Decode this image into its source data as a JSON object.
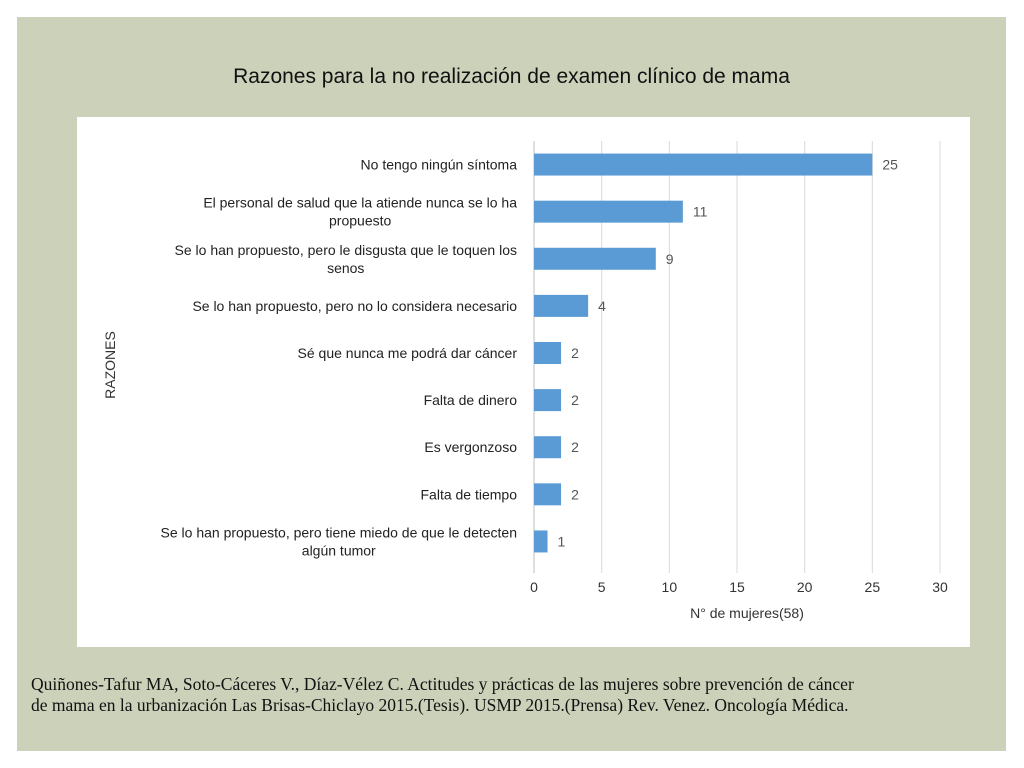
{
  "slide": {
    "title": "Razones para la no realización de examen clínico de mama",
    "citation_line1": "Quiñones-Tafur MA, Soto-Cáceres V., Díaz-Vélez C. Actitudes y prácticas de las mujeres sobre prevención de cáncer",
    "citation_line2": "de mama en la urbanización Las Brisas-Chiclayo 2015.(Tesis). USMP 2015.(Prensa) Rev. Venez. Oncología Médica."
  },
  "colors": {
    "slide_background": "#ccd1ba",
    "bar": "#5b9bd5",
    "gridline": "#d9d9d9"
  },
  "chart_data": {
    "type": "bar",
    "orientation": "horizontal",
    "categories": [
      [
        "No tengo ningún síntoma"
      ],
      [
        "El personal de salud que la atiende nunca se lo ha",
        "propuesto"
      ],
      [
        "Se lo han propuesto, pero le disgusta que le toquen los",
        "senos"
      ],
      [
        "Se lo han propuesto, pero no lo considera necesario"
      ],
      [
        "Sé que nunca me podrá dar cáncer"
      ],
      [
        "Falta de dinero"
      ],
      [
        "Es vergonzoso"
      ],
      [
        "Falta de tiempo"
      ],
      [
        "Se lo han propuesto, pero tiene miedo de que le detecten",
        "algún tumor"
      ]
    ],
    "values": [
      25,
      11,
      9,
      4,
      2,
      2,
      2,
      2,
      1
    ],
    "xlabel": "N° de mujeres(58)",
    "ylabel": "RAZONES",
    "xlim": [
      0,
      30
    ],
    "xticks": [
      0,
      5,
      10,
      15,
      20,
      25,
      30
    ],
    "grid": "vertical",
    "data_labels": true
  }
}
